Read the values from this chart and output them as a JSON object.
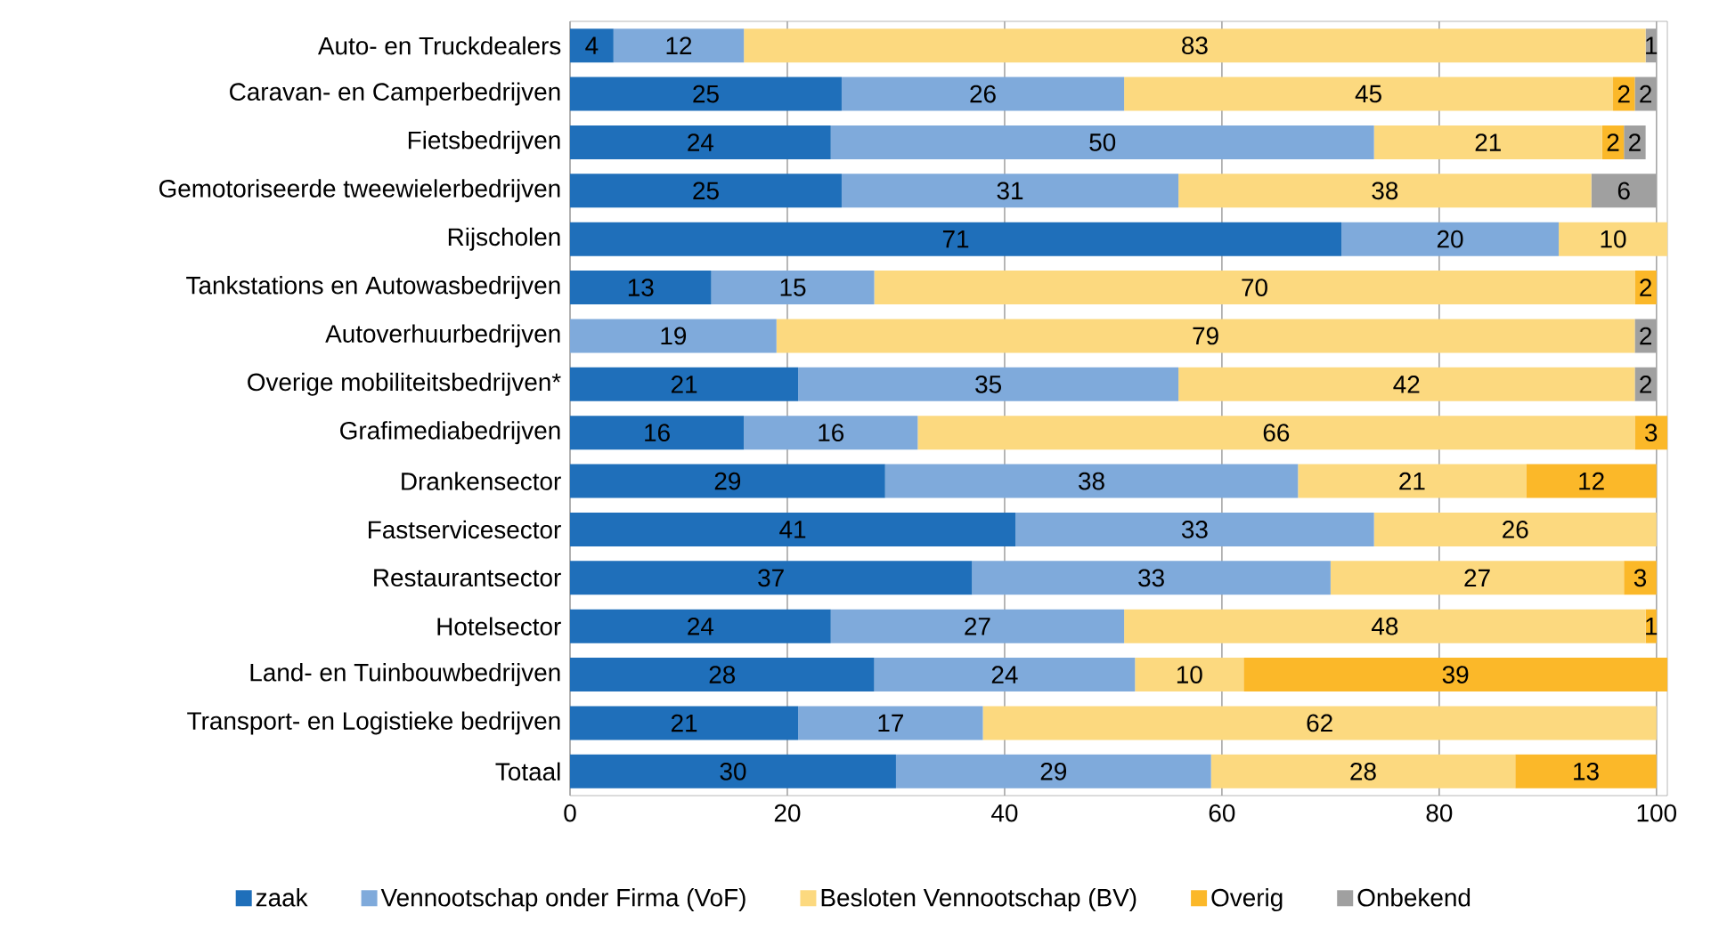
{
  "chart_data": {
    "type": "bar",
    "orientation": "horizontal",
    "stacked": true,
    "data_labels": true,
    "grid": "x",
    "legend": "bottom",
    "categories": [
      "Auto- en Truckdealers",
      "Caravan- en Camperbedrijven",
      "Fietsbedrijven",
      "Gemotoriseerde tweewielerbedrijven",
      "Rijscholen",
      "Tankstations en Autowasbedrijven",
      "Autoverhuurbedrijven",
      "Overige mobiliteitsbedrijven*",
      "Grafimediabedrijven",
      "Drankensector",
      "Fastservicesector",
      "Restaurantsector",
      "Hotelsector",
      "Land- en Tuinbouwbedrijven",
      "Transport- en Logistieke bedrijven",
      "Totaal"
    ],
    "xlim": [
      0,
      101
    ],
    "xticks": [
      0,
      20,
      40,
      60,
      80,
      100
    ],
    "series": [
      {
        "name": "zaak",
        "color": "#1f6fba",
        "values": [
          4,
          25,
          24,
          25,
          71,
          13,
          null,
          21,
          16,
          29,
          41,
          37,
          24,
          28,
          21,
          30
        ]
      },
      {
        "name": "Vennootschap onder Firma (VoF)",
        "color": "#7faadb",
        "values": [
          12,
          26,
          50,
          31,
          20,
          15,
          19,
          35,
          16,
          38,
          33,
          33,
          27,
          24,
          17,
          29
        ]
      },
      {
        "name": "Besloten Vennootschap (BV)",
        "color": "#fcd97f",
        "values": [
          83,
          45,
          21,
          38,
          10,
          70,
          79,
          42,
          66,
          21,
          26,
          27,
          48,
          10,
          62,
          28
        ]
      },
      {
        "name": "Overig",
        "color": "#fbb829",
        "values": [
          null,
          2,
          2,
          null,
          null,
          2,
          null,
          null,
          3,
          12,
          null,
          3,
          1,
          39,
          null,
          13
        ]
      },
      {
        "name": "Onbekend",
        "color": "#a0a0a0",
        "values": [
          1,
          2,
          2,
          6,
          null,
          null,
          2,
          2,
          null,
          null,
          null,
          null,
          null,
          null,
          null,
          null
        ]
      }
    ]
  }
}
